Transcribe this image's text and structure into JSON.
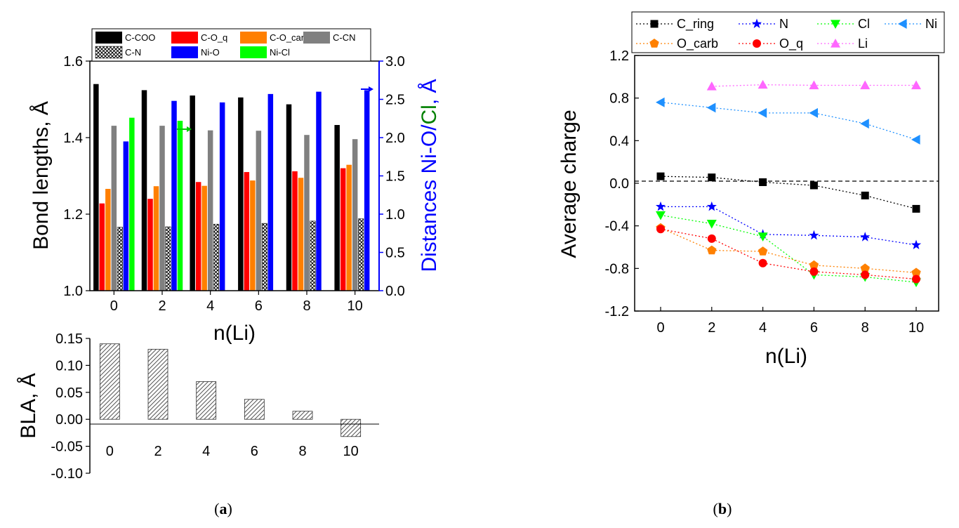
{
  "chart_data": [
    {
      "id": "a-top",
      "type": "bar",
      "categories": [
        "0",
        "2",
        "4",
        "6",
        "8",
        "10"
      ],
      "ylabel": "Bond lengths, Å",
      "ylabel2_parts": [
        "Distances Ni-O/",
        "Cl",
        ", Å"
      ],
      "xlabel": "n(Li)",
      "ylim": [
        1.0,
        1.6
      ],
      "yticks": [
        "1.0",
        "1.2",
        "1.4",
        "1.6"
      ],
      "ylim2": [
        0.0,
        3.0
      ],
      "yticks2": [
        "0.0",
        "0.5",
        "1.0",
        "1.5",
        "2.0",
        "2.5",
        "3.0"
      ],
      "series": [
        {
          "name": "C-COO",
          "color": "#000000",
          "axis": "left",
          "values": [
            1.54,
            1.524,
            1.51,
            1.505,
            1.487,
            1.433
          ]
        },
        {
          "name": "C-O_q",
          "color": "#ff0000",
          "axis": "left",
          "values": [
            1.228,
            1.24,
            1.284,
            1.31,
            1.312,
            1.32
          ]
        },
        {
          "name": "C-O_carb",
          "color": "#ff7f00",
          "axis": "left",
          "values": [
            1.266,
            1.273,
            1.274,
            1.288,
            1.295,
            1.329
          ]
        },
        {
          "name": "C-CN",
          "color": "#808080",
          "axis": "left",
          "values": [
            1.431,
            1.431,
            1.419,
            1.418,
            1.407,
            1.396
          ]
        },
        {
          "name": "C-N",
          "color": "#999999",
          "axis": "left",
          "pattern": "crosshatch",
          "values": [
            1.166,
            1.167,
            1.174,
            1.176,
            1.182,
            1.188
          ]
        },
        {
          "name": "Ni-O",
          "color": "#0000ff",
          "axis": "right",
          "values": [
            1.95,
            2.48,
            2.46,
            2.57,
            2.6,
            2.62
          ]
        },
        {
          "name": "Ni-Cl",
          "color": "#00ff00",
          "axis": "right",
          "values": [
            2.26,
            2.22,
            null,
            null,
            null,
            null
          ]
        }
      ],
      "legend": [
        "C-COO",
        "C-O_q",
        "C-O_carb",
        "C-CN",
        "C-N",
        "Ni-O",
        "Ni-Cl"
      ],
      "legend_position": "top"
    },
    {
      "id": "a-bottom",
      "type": "bar",
      "categories": [
        "0",
        "2",
        "4",
        "6",
        "8",
        "10"
      ],
      "ylabel": "BLA, Å",
      "ylim": [
        -0.1,
        0.15
      ],
      "yticks": [
        "-0.10",
        "-0.05",
        "0.00",
        "0.05",
        "0.10",
        "0.15"
      ],
      "series": [
        {
          "name": "BLA",
          "color": "#d9d9d9",
          "pattern": "hatch",
          "values": [
            0.14,
            0.13,
            0.07,
            0.037,
            0.015,
            -0.032
          ]
        }
      ]
    },
    {
      "id": "b",
      "type": "line",
      "x": [
        0,
        2,
        4,
        6,
        8,
        10
      ],
      "xticks": [
        "0",
        "2",
        "4",
        "6",
        "8",
        "10"
      ],
      "ylabel": "Average charge",
      "xlabel": "n(Li)",
      "ylim": [
        -1.2,
        1.2
      ],
      "yticks": [
        "-1.2",
        "-0.8",
        "-0.4",
        "0.0",
        "0.4",
        "0.8",
        "1.2"
      ],
      "reference_line_y": 0.0,
      "series": [
        {
          "name": "C_ring",
          "color": "#000000",
          "marker": "square",
          "values": [
            0.065,
            0.055,
            0.01,
            -0.02,
            -0.115,
            -0.24
          ]
        },
        {
          "name": "N",
          "color": "#0000ff",
          "marker": "star",
          "values": [
            -0.22,
            -0.22,
            -0.48,
            -0.49,
            -0.505,
            -0.58
          ]
        },
        {
          "name": "Cl",
          "color": "#00ff00",
          "marker": "triangle-down",
          "values": [
            -0.3,
            -0.38,
            -0.5,
            -0.86,
            -0.88,
            -0.93
          ]
        },
        {
          "name": "Ni",
          "color": "#1e90ff",
          "marker": "triangle-left",
          "values": [
            0.76,
            0.71,
            0.66,
            0.66,
            0.56,
            0.41
          ]
        },
        {
          "name": "O_carb",
          "color": "#ff8000",
          "marker": "pentagon",
          "values": [
            -0.42,
            -0.63,
            -0.64,
            -0.77,
            -0.8,
            -0.84
          ]
        },
        {
          "name": "O_q",
          "color": "#ff0000",
          "marker": "circle",
          "values": [
            -0.43,
            -0.52,
            -0.75,
            -0.83,
            -0.86,
            -0.9
          ]
        },
        {
          "name": "Li",
          "color": "#ff66ff",
          "marker": "triangle-up",
          "values": [
            null,
            0.91,
            0.925,
            0.92,
            0.92,
            0.92
          ]
        }
      ],
      "legend_position": "top"
    }
  ],
  "captions": {
    "a_open": "(",
    "a_letter": "a",
    "a_close": ")",
    "b_open": "(",
    "b_letter": "b",
    "b_close": ")"
  }
}
